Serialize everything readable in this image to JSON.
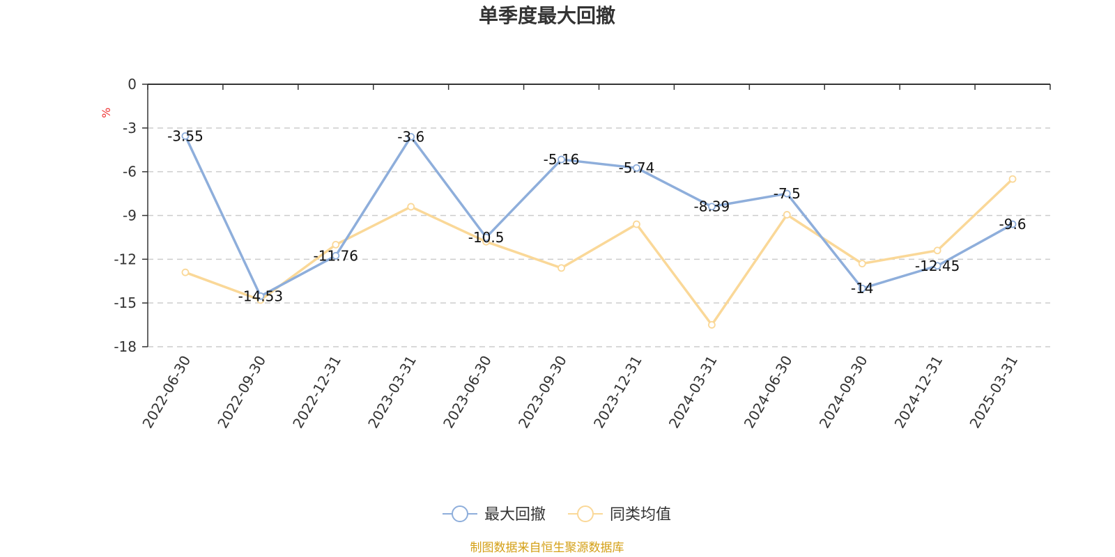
{
  "chart_data": {
    "type": "line",
    "title": "单季度最大回撤",
    "ylabel": "%",
    "categories": [
      "2022-06-30",
      "2022-09-30",
      "2022-12-31",
      "2023-03-31",
      "2023-06-30",
      "2023-09-30",
      "2023-12-31",
      "2024-03-31",
      "2024-06-30",
      "2024-09-30",
      "2024-12-31",
      "2025-03-31"
    ],
    "ylim": [
      -18,
      0
    ],
    "yticks": [
      "0",
      "-3",
      "-6",
      "-9",
      "-12",
      "-15",
      "-18"
    ],
    "grid": true,
    "legend_position": "bottom",
    "series": [
      {
        "name": "最大回撤",
        "color": "#8eaedb",
        "values": [
          -3.55,
          -14.53,
          -11.76,
          -3.6,
          -10.5,
          -5.16,
          -5.74,
          -8.39,
          -7.5,
          -14,
          -12.45,
          -9.6
        ],
        "labels": [
          "-3.55",
          "-14.53",
          "-11.76",
          "-3.6",
          "-10.5",
          "-5.16",
          "-5.74",
          "-8.39",
          "-7.5",
          "-14",
          "-12.45",
          "-9.6"
        ]
      },
      {
        "name": "同类均值",
        "color": "#fad898",
        "values": [
          -12.9,
          -14.8,
          -11.0,
          -8.4,
          -10.8,
          -12.6,
          -9.6,
          -16.5,
          -8.95,
          -12.3,
          -11.4,
          -6.5
        ]
      }
    ]
  },
  "source_text": "制图数据来自恒生聚源数据库",
  "colors": {
    "unit": "#ee3333",
    "source": "#d4a017",
    "axis": "#333333",
    "grid": "#cccccc"
  }
}
